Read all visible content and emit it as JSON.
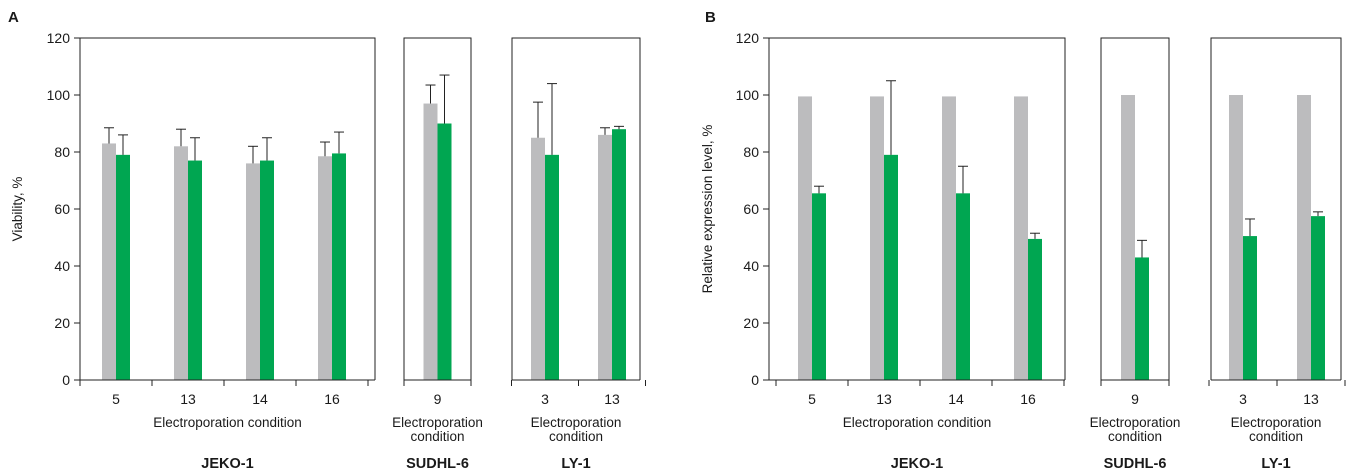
{
  "chart_data": [
    {
      "type": "bar",
      "panel_label": "A",
      "ylabel": "Viability, %",
      "ylim": [
        0,
        120
      ],
      "yticks": [
        0,
        20,
        40,
        60,
        80,
        100,
        120
      ],
      "subplots": [
        {
          "group": "JEKO-1",
          "xlabel": "Electroporation condition",
          "categories": [
            "5",
            "13",
            "14",
            "16"
          ],
          "series": [
            {
              "color": "#bcbcbe",
              "values": [
                83,
                82,
                76,
                78.5
              ],
              "errors": [
                5.5,
                6,
                6,
                5
              ]
            },
            {
              "color": "#00a651",
              "values": [
                79,
                77,
                77,
                79.5
              ],
              "errors": [
                7,
                8,
                8,
                7.5
              ]
            }
          ]
        },
        {
          "group": "SUDHL-6",
          "xlabel": [
            "Electroporation",
            "condition"
          ],
          "categories": [
            "9"
          ],
          "series": [
            {
              "color": "#bcbcbe",
              "values": [
                97
              ],
              "errors": [
                6.5
              ]
            },
            {
              "color": "#00a651",
              "values": [
                90
              ],
              "errors": [
                17
              ]
            }
          ]
        },
        {
          "group": "LY-1",
          "xlabel": [
            "Electroporation",
            "condition"
          ],
          "categories": [
            "3",
            "13"
          ],
          "series": [
            {
              "color": "#bcbcbe",
              "values": [
                85,
                86
              ],
              "errors": [
                12.5,
                2.5
              ]
            },
            {
              "color": "#00a651",
              "values": [
                79,
                88
              ],
              "errors": [
                25,
                1
              ]
            }
          ]
        }
      ]
    },
    {
      "type": "bar",
      "panel_label": "B",
      "ylabel": "Relative expression level, %",
      "ylim": [
        0,
        120
      ],
      "yticks": [
        0,
        20,
        40,
        60,
        80,
        100,
        120
      ],
      "subplots": [
        {
          "group": "JEKO-1",
          "xlabel": "Electroporation condition",
          "categories": [
            "5",
            "13",
            "14",
            "16"
          ],
          "series": [
            {
              "color": "#bcbcbe",
              "values": [
                99.5,
                99.5,
                99.5,
                99.5
              ],
              "errors": [
                0,
                0,
                0,
                0
              ]
            },
            {
              "color": "#00a651",
              "values": [
                65.5,
                79,
                65.5,
                49.5
              ],
              "errors": [
                2.5,
                26,
                9.5,
                2
              ]
            }
          ]
        },
        {
          "group": "SUDHL-6",
          "xlabel": [
            "Electroporation",
            "condition"
          ],
          "categories": [
            "9"
          ],
          "series": [
            {
              "color": "#bcbcbe",
              "values": [
                100
              ],
              "errors": [
                0
              ]
            },
            {
              "color": "#00a651",
              "values": [
                43
              ],
              "errors": [
                6
              ]
            }
          ]
        },
        {
          "group": "LY-1",
          "xlabel": [
            "Electroporation",
            "condition"
          ],
          "categories": [
            "3",
            "13"
          ],
          "series": [
            {
              "color": "#bcbcbe",
              "values": [
                100,
                100
              ],
              "errors": [
                0,
                0
              ]
            },
            {
              "color": "#00a651",
              "values": [
                50.5,
                57.5
              ],
              "errors": [
                6,
                1.5
              ]
            }
          ]
        }
      ]
    }
  ]
}
